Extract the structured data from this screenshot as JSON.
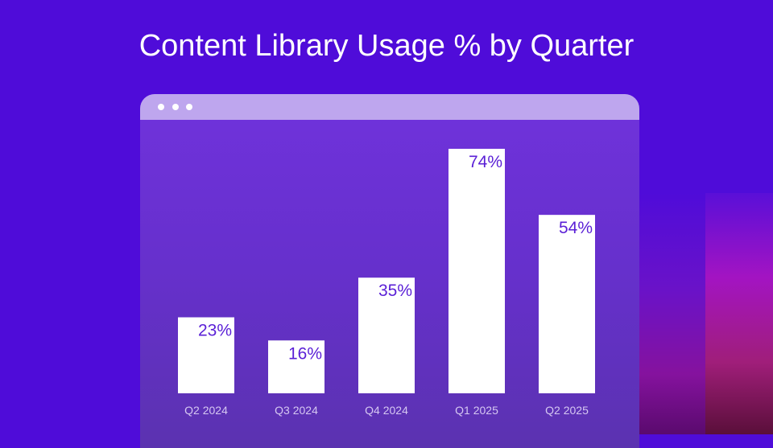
{
  "chart_data": {
    "type": "bar",
    "title": "Content Library Usage % by Quarter",
    "categories": [
      "Q2 2024",
      "Q3 2024",
      "Q4 2024",
      "Q1 2025",
      "Q2 2025"
    ],
    "values": [
      23,
      16,
      35,
      74,
      54
    ],
    "data_labels": [
      "23%",
      "16%",
      "35%",
      "74%",
      "54%"
    ],
    "xlabel": "",
    "ylabel": "",
    "ylim": [
      0,
      80
    ],
    "grid": false,
    "colors": {
      "bar": "#ffffff",
      "label": "#5a1fd6",
      "tick": "#d6c8f2",
      "background": "#4f0cd9"
    }
  }
}
